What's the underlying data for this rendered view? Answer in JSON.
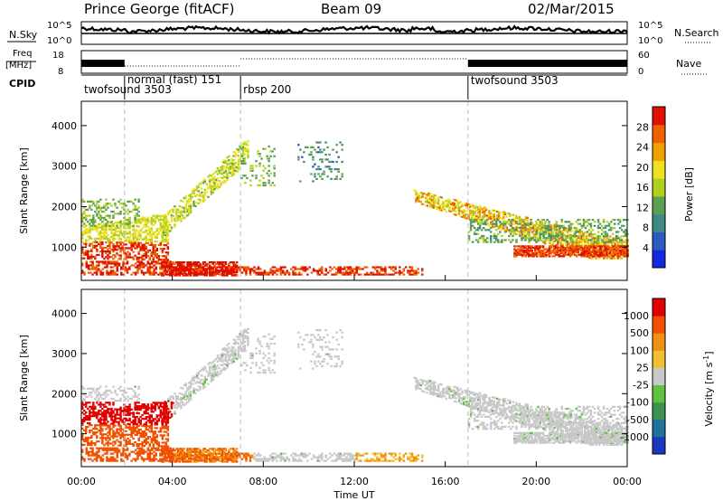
{
  "header": {
    "station": "Prince George (fitACF)",
    "beam": "Beam 09",
    "date": "02/Mar/2015"
  },
  "top_panels": {
    "nsky_label": "N.Sky",
    "nsky_ticks": [
      "10^5",
      "10^0"
    ],
    "nsearch_label": "N.Search",
    "nsearch_ticks": [
      "10^5",
      "10^0"
    ],
    "freq_label_line1": "Freq",
    "freq_label_line2": "[MHz]",
    "freq_ticks": [
      "18",
      "8"
    ],
    "nave_label": "Nave",
    "nave_ticks": [
      "60",
      "0"
    ],
    "cpid_label": "CPID",
    "cpid_segments": [
      {
        "label": "twofsound 3503",
        "start_hour": 0,
        "end_hour": 1.9
      },
      {
        "label": "normal (fast) 151",
        "start_hour": 1.9,
        "end_hour": 7
      },
      {
        "label": "rbsp 200",
        "start_hour": 7,
        "end_hour": 17
      },
      {
        "label": "twofsound 3503",
        "start_hour": 17,
        "end_hour": 24
      }
    ]
  },
  "power_panel": {
    "ylabel": "Slant Range [km]",
    "yticks": [
      "1000",
      "2000",
      "3000",
      "4000"
    ],
    "colorbar_label": "Power [dB]",
    "colorbar_ticks": [
      "4",
      "8",
      "12",
      "16",
      "20",
      "24",
      "28"
    ],
    "colors": [
      "#1428e0",
      "#2a5cc0",
      "#3f8a80",
      "#5aa050",
      "#b0d020",
      "#f0e020",
      "#f0a000",
      "#f06000",
      "#e01000"
    ]
  },
  "velocity_panel": {
    "ylabel": "Slant Range [km]",
    "yticks": [
      "1000",
      "2000",
      "3000",
      "4000"
    ],
    "colorbar_label": "Velocity [m s^-1]",
    "colorbar_ticks": [
      "1000",
      "500",
      "100",
      "25",
      "-25",
      "-100",
      "-500",
      "-1000"
    ],
    "colors": [
      "#1838c0",
      "#2070a0",
      "#3c9050",
      "#60c040",
      "#c8c8c8",
      "#f0c030",
      "#f09010",
      "#f05000",
      "#e00000"
    ]
  },
  "xaxis": {
    "label": "Time UT",
    "ticks": [
      "00:00",
      "04:00",
      "08:00",
      "12:00",
      "16:00",
      "20:00",
      "00:00"
    ]
  },
  "chart_data": {
    "type": "heatmap",
    "title": "Prince George (fitACF)",
    "xlabel": "Time UT",
    "ylabel": "Slant Range [km]",
    "xlim_hours": [
      0,
      24
    ],
    "ylim_km": [
      180,
      4600
    ],
    "power_range_db": [
      0,
      30
    ],
    "velocity_range_ms": [
      -1000,
      1000
    ],
    "cpid_boundaries_hours": [
      1.9,
      7,
      17
    ],
    "features": [
      {
        "name": "near_range_band",
        "start_hour": 0,
        "end_hour": 15,
        "range_km": [
          300,
          650
        ],
        "power_db": 22,
        "velocity_ms": -150
      },
      {
        "name": "main_echo_band_morning",
        "start_hour": 0,
        "end_hour": 3.5,
        "range_km": [
          700,
          1300
        ],
        "power_db": 24,
        "velocity_ms": -300
      },
      {
        "name": "rising_band",
        "start_hour": 3.5,
        "end_hour": 7.2,
        "range_km": [
          1200,
          3300
        ],
        "power_db": 14,
        "velocity_ms": 10
      },
      {
        "name": "evening_band",
        "start_hour": 14.6,
        "end_hour": 24,
        "range_km": [
          800,
          2100
        ],
        "power_db": 18,
        "velocity_ms": 0
      },
      {
        "name": "far_patches",
        "start_hour": 9.5,
        "end_hour": 11.5,
        "range_km": [
          2700,
          3500
        ],
        "power_db": 8,
        "velocity_ms": 20
      }
    ]
  }
}
